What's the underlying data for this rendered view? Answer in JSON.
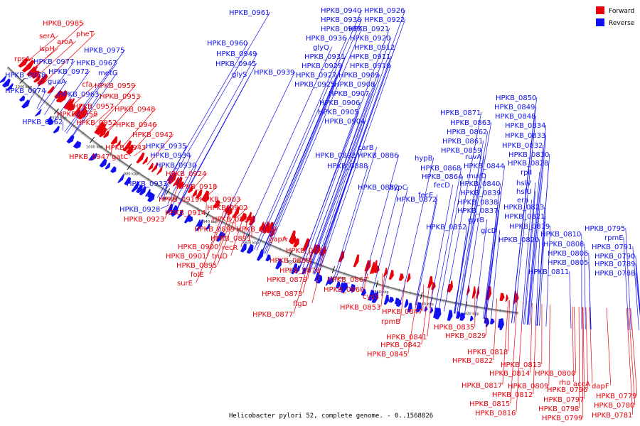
{
  "caption": "Helicobacter pylori 52, complete genome. - 0..1568826",
  "colors": {
    "forward": "#e8000b",
    "reverse": "#1010f0",
    "backbone": "#7a7a7a"
  },
  "legend": [
    {
      "label": "Forward",
      "color": "#e8000b"
    },
    {
      "label": "Reverse",
      "color": "#1010f0"
    }
  ],
  "ticks": [
    "1040 kbp",
    "1020 kbp",
    "1000 kbp",
    "980 kbp",
    "960 kbp",
    "940 kbp",
    "920 kbp",
    "900 kbp",
    "880 kbp",
    "860 kbp",
    "840 kbp",
    "820 kbp"
  ],
  "labels": {
    "forward": [
      "HPKB_0985",
      "serA",
      "pheT",
      "aroA",
      "ispH",
      "rpsA",
      "cfa",
      "HPKB_0959",
      "HPKB_0953",
      "HPKB_0957",
      "HPKB_0958",
      "HPKB_0948",
      "HPKB_0952",
      "HPKB_0946",
      "HPKB_0942",
      "HPKB_0943",
      "HPKB_0947",
      "gatC",
      "HPKB_0924",
      "HPKB_0918",
      "HPKB_0919",
      "HPKB_0903",
      "HPKB_0914",
      "HPKB_0902",
      "HPKB_0923",
      "HPKB_0897",
      "HPKB_0899",
      "HPKB_0890",
      "HPKB_0891",
      "HPKB_0900",
      "recR",
      "HPKB_0901",
      "truD",
      "HPKB_0895",
      "folE",
      "surE",
      "gapA",
      "HPKB_0881",
      "HPKB_0880",
      "HPKB_0878",
      "HPKB_0879",
      "HPKB_0867",
      "HPKB_0873",
      "HPKB_0860",
      "flgD",
      "HPKB_0877",
      "cysS",
      "HPKB_0853",
      "HPKB_0847",
      "rpmB",
      "HPKB_0835",
      "HPKB_0829",
      "HPKB_0841",
      "HPKB_0842",
      "HPKB_0845",
      "HPKB_0818",
      "HPKB_0822",
      "HPKB_0813",
      "HPKB_0814",
      "HPKB_0817",
      "HPKB_0809",
      "HPKB_0812",
      "HPKB_0815",
      "HPKB_0816",
      "HPKB_0800",
      "rho",
      "accA",
      "HPKB_0796",
      "dapF",
      "HPKB_0797",
      "HPKB_0779",
      "HPKB_0798",
      "HPKB_0780",
      "HPKB_0799",
      "HPKB_0781"
    ],
    "reverse": [
      "HPKB_0961",
      "HPKB_0960",
      "HPKB_0949",
      "HPKB_0975",
      "HPKB_0945",
      "HPKB_0977",
      "HPKB_0967",
      "HPKB_0978",
      "HPKB_0972",
      "metG",
      "glyS",
      "HPKB_0939",
      "guaA",
      "HPKB_0974",
      "HPKB_0963",
      "HPKB_0962",
      "HPKB_0940",
      "HPKB_0926",
      "HPKB_0938",
      "HPKB_0922",
      "HPKB_0937",
      "HPKB_0921",
      "HPKB_0936",
      "HPKB_0920",
      "glyQ",
      "HPKB_0912",
      "HPKB_0931",
      "HPKB_0911",
      "HPKB_0929",
      "HPKB_0910",
      "HPKB_0927",
      "HPKB_0909",
      "HPKB_0925",
      "HPKB_0908",
      "HPKB_0907",
      "HPKB_0906",
      "HPKB_0905",
      "HPKB_0904",
      "HPKB_0935",
      "HPKB_0934",
      "HPKB_0930",
      "HPKB_0933",
      "HPKB_0928",
      "HPKB_0892",
      "carB",
      "HPKB_0886",
      "HPKB_0888",
      "HPKB_0882",
      "HPKB_0872",
      "hypC",
      "HPKB_0871",
      "HPKB_0863",
      "HPKB_0862",
      "HPKB_0861",
      "HPKB_0859",
      "hypB",
      "HPKB_0868",
      "HPKB_0864",
      "fecD",
      "fecE",
      "HPKB_0850",
      "HPKB_0849",
      "HPKB_0848",
      "HPKB_0834",
      "HPKB_0833",
      "HPKB_0832",
      "HPKB_0830",
      "ruvA",
      "HPKB_0844",
      "murD",
      "HPKB_0840",
      "HPKB_0839",
      "HPKB_0838",
      "HPKB_0837",
      "gyrB",
      "HPKB_0852",
      "glcD",
      "HPKB_0828",
      "rplI",
      "hslV",
      "hslU",
      "era",
      "HPKB_0823",
      "HPKB_0821",
      "HPKB_0819",
      "HPKB_0820",
      "HPKB_0810",
      "HPKB_0808",
      "HPKB_0806",
      "HPKB_0805",
      "HPKB_0811",
      "HPKB_0795",
      "rpmE",
      "HPKB_0791",
      "HPKB_0790",
      "HPKB_0789",
      "HPKB_0788"
    ]
  }
}
